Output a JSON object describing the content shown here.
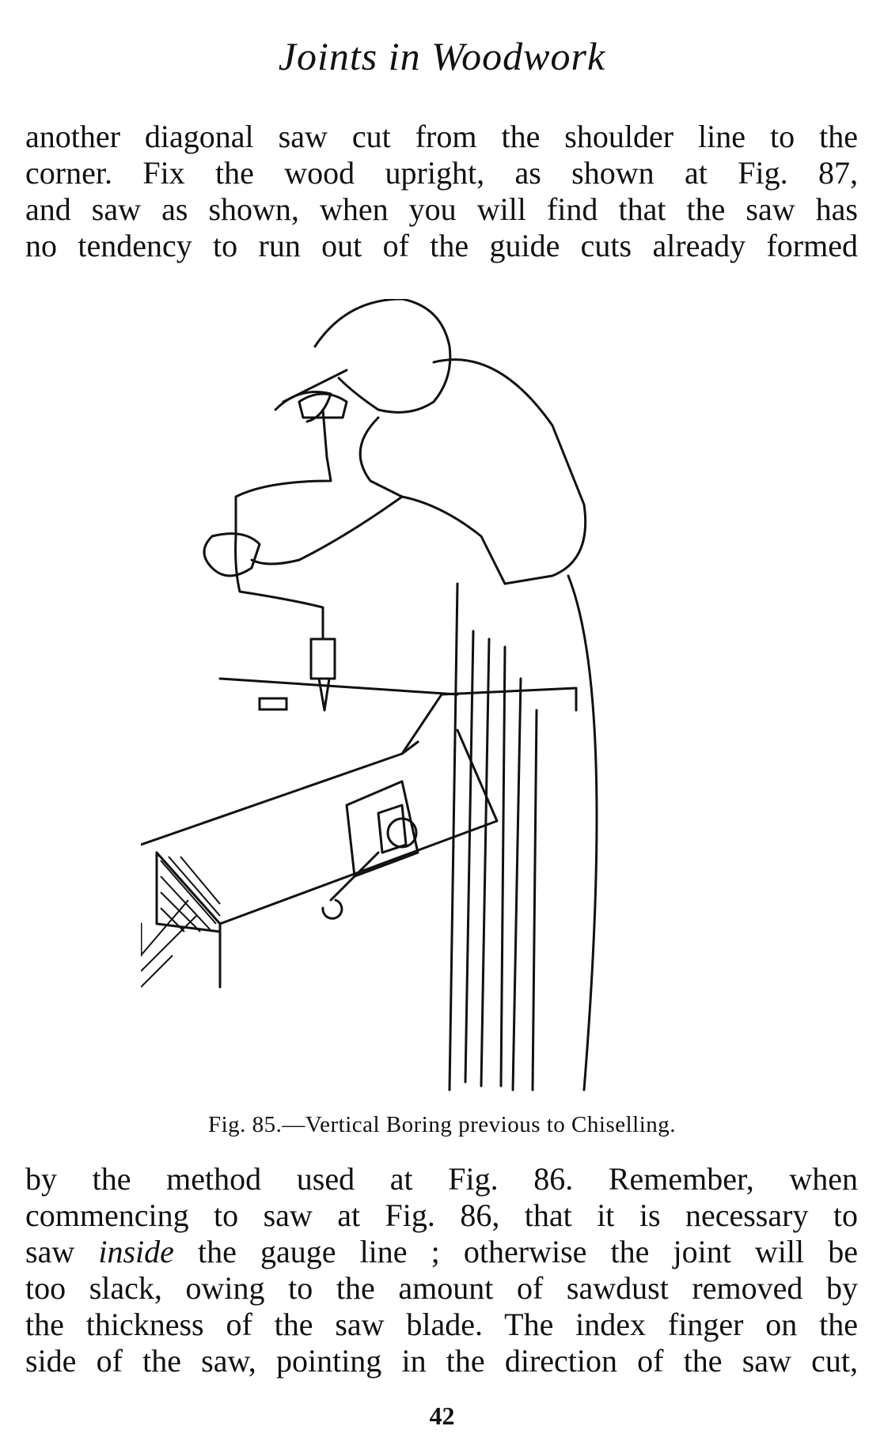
{
  "header": {
    "title": "Joints in Woodwork"
  },
  "paragraph1": {
    "lines": [
      "another diagonal saw cut from the shoulder line to the",
      "corner.  Fix the wood upright, as shown at Fig. 87,",
      "and saw as shown, when you will find that the saw has",
      "no tendency to run out of the guide cuts already formed"
    ]
  },
  "figure": {
    "caption": "Fig. 85.—Vertical Boring previous to Chiselling."
  },
  "paragraph2": {
    "line1": "by the method used at Fig. 86.  Remember, when",
    "line2": "commencing to saw at Fig. 86, that it is necessary to",
    "line3_before": "saw ",
    "line3_italic": "inside",
    "line3_after": " the gauge line ;  otherwise the joint will be",
    "line4": "too slack, owing to the amount of sawdust removed by",
    "line5": "the thickness of the saw blade.  The index finger on the",
    "line6": "side of the saw, pointing in the direction of the saw cut,"
  },
  "page_number": "42"
}
